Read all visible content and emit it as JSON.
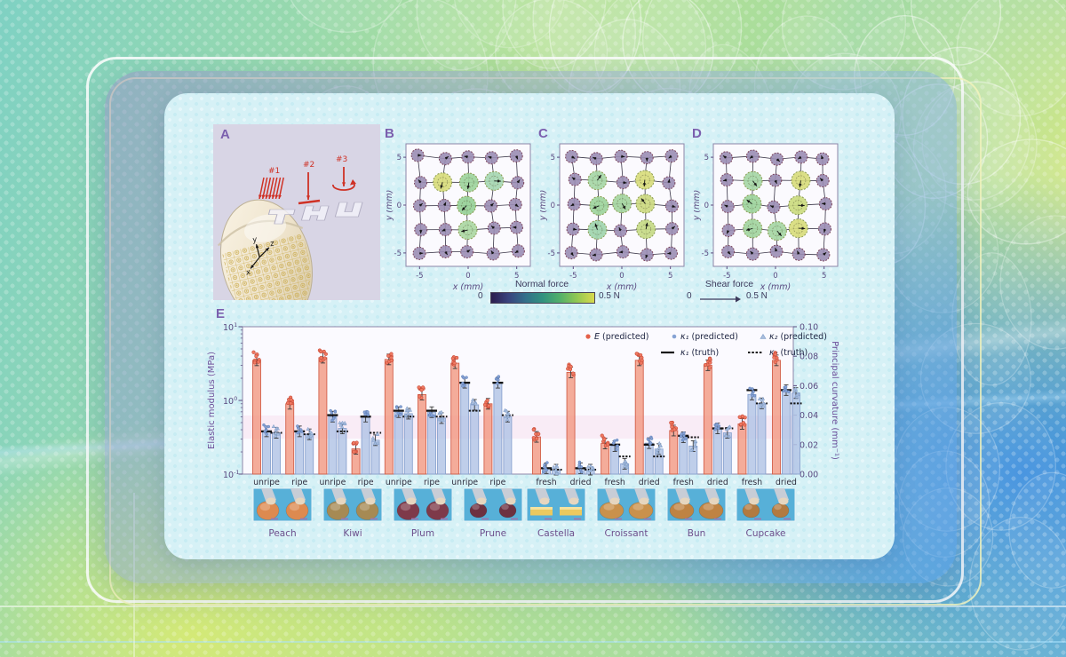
{
  "figure": {
    "panel_labels": {
      "a": "A",
      "b": "B",
      "c": "C",
      "d": "D",
      "e": "E"
    },
    "panel_a": {
      "force_labels": [
        "#1",
        "#2",
        "#3"
      ],
      "axis_labels": {
        "x": "x",
        "y": "y",
        "z": "z"
      }
    },
    "force_maps": {
      "x_axis_label": "x (mm)",
      "y_axis_label": "y (mm)",
      "x_ticks": [
        "-5",
        "0",
        "5"
      ],
      "y_ticks": [
        "5",
        "0",
        "-5"
      ],
      "node_positions_mm": [
        -5,
        -2.5,
        0,
        2.5,
        5
      ],
      "panels": [
        {
          "id": "B",
          "pattern_letter": "T",
          "active_nodes": [
            {
              "col": 1,
              "row": 1,
              "color": "#d8dc7c"
            },
            {
              "col": 2,
              "row": 1,
              "color": "#9dd49c"
            },
            {
              "col": 3,
              "row": 1,
              "color": "#a6d7b2"
            },
            {
              "col": 2,
              "row": 2,
              "color": "#96d097"
            },
            {
              "col": 2,
              "row": 3,
              "color": "#abd8a3"
            }
          ]
        },
        {
          "id": "C",
          "pattern_letter": "H",
          "active_nodes": [
            {
              "col": 1,
              "row": 1,
              "color": "#a6d7a6"
            },
            {
              "col": 3,
              "row": 1,
              "color": "#d8dc7c"
            },
            {
              "col": 1,
              "row": 2,
              "color": "#9dd49c"
            },
            {
              "col": 2,
              "row": 2,
              "color": "#a4d5a0"
            },
            {
              "col": 3,
              "row": 2,
              "color": "#ccd980"
            },
            {
              "col": 1,
              "row": 3,
              "color": "#9fd5ae"
            },
            {
              "col": 3,
              "row": 3,
              "color": "#c6da85"
            }
          ]
        },
        {
          "id": "D",
          "pattern_letter": "U",
          "active_nodes": [
            {
              "col": 1,
              "row": 1,
              "color": "#a6d7a6"
            },
            {
              "col": 3,
              "row": 1,
              "color": "#d8dc7c"
            },
            {
              "col": 1,
              "row": 2,
              "color": "#9dd49c"
            },
            {
              "col": 3,
              "row": 2,
              "color": "#cbdb7f"
            },
            {
              "col": 1,
              "row": 3,
              "color": "#a2d59f"
            },
            {
              "col": 2,
              "row": 3,
              "color": "#a6d6a4"
            },
            {
              "col": 3,
              "row": 3,
              "color": "#d8dc7c"
            }
          ]
        }
      ]
    },
    "normal_force_legend": {
      "title": "Normal force",
      "min_label": "0",
      "max_label": "0.5 N"
    },
    "shear_force_legend": {
      "title": "Shear force",
      "min_label": "0",
      "max_label": "0.5 N"
    },
    "chart_data": {
      "type": "bar",
      "left_axis": {
        "label": "Elastic modulus (MPa)",
        "scale": "log",
        "tick_exponents": [
          1,
          0,
          -1
        ],
        "range": [
          0.1,
          10
        ]
      },
      "right_axis": {
        "label": "Principal curvature (mm⁻¹)",
        "ticks": [
          "0.00",
          "0.02",
          "0.04",
          "0.06",
          "0.08",
          "0.10"
        ],
        "range": [
          0,
          0.1
        ]
      },
      "legend": [
        {
          "label": "E (predicted)",
          "marker": "red-dot"
        },
        {
          "label": "κ₁ (predicted)",
          "marker": "blue-dot"
        },
        {
          "label": "κ₂ (predicted)",
          "marker": "blue-triangle"
        },
        {
          "label": "κ₁ (truth)",
          "marker": "solid-line"
        },
        {
          "label": "κ₂ (truth)",
          "marker": "dashed-line"
        }
      ],
      "groups": [
        {
          "item": "Peach",
          "cond": "unripe",
          "E": 3.5,
          "k1": 0.029,
          "k1_truth": 0.029,
          "k2": 0.028,
          "k2_truth": 0.028
        },
        {
          "item": "Peach",
          "cond": "ripe",
          "E": 0.9,
          "k1": 0.029,
          "k1_truth": 0.029,
          "k2": 0.027,
          "k2_truth": 0.027
        },
        {
          "item": "Kiwi",
          "cond": "unripe",
          "E": 3.8,
          "k1": 0.039,
          "k1_truth": 0.04,
          "k2": 0.031,
          "k2_truth": 0.029
        },
        {
          "item": "Kiwi",
          "cond": "ripe",
          "E": 0.22,
          "k1": 0.039,
          "k1_truth": 0.039,
          "k2": 0.023,
          "k2_truth": 0.028
        },
        {
          "item": "Plum",
          "cond": "unripe",
          "E": 3.6,
          "k1": 0.042,
          "k1_truth": 0.043,
          "k2": 0.041,
          "k2_truth": 0.039
        },
        {
          "item": "Plum",
          "cond": "ripe",
          "E": 1.2,
          "k1": 0.042,
          "k1_truth": 0.043,
          "k2": 0.038,
          "k2_truth": 0.039
        },
        {
          "item": "Prune",
          "cond": "unripe",
          "E": 3.2,
          "k1": 0.062,
          "k1_truth": 0.062,
          "k2": 0.047,
          "k2_truth": 0.043
        },
        {
          "item": "Prune",
          "cond": "ripe",
          "E": 0.9,
          "k1": 0.062,
          "k1_truth": 0.062,
          "k2": 0.039,
          "k2_truth": 0.04
        },
        {
          "item": "Castella",
          "cond": "fresh",
          "E": 0.32,
          "k1": 0.004,
          "k1_truth": 0.004,
          "k2": 0.003,
          "k2_truth": 0.003
        },
        {
          "item": "Castella",
          "cond": "dried",
          "E": 2.4,
          "k1": 0.004,
          "k1_truth": 0.004,
          "k2": 0.003,
          "k2_truth": 0.003
        },
        {
          "item": "Croissant",
          "cond": "fresh",
          "E": 0.26,
          "k1": 0.019,
          "k1_truth": 0.02,
          "k2": 0.007,
          "k2_truth": 0.012
        },
        {
          "item": "Croissant",
          "cond": "dried",
          "E": 3.5,
          "k1": 0.021,
          "k1_truth": 0.02,
          "k2": 0.017,
          "k2_truth": 0.012
        },
        {
          "item": "Bun",
          "cond": "fresh",
          "E": 0.39,
          "k1": 0.025,
          "k1_truth": 0.026,
          "k2": 0.019,
          "k2_truth": 0.025
        },
        {
          "item": "Bun",
          "cond": "dried",
          "E": 3.0,
          "k1": 0.031,
          "k1_truth": 0.031,
          "k2": 0.028,
          "k2_truth": 0.031
        },
        {
          "item": "Cupcake",
          "cond": "fresh",
          "E": 0.48,
          "k1": 0.054,
          "k1_truth": 0.057,
          "k2": 0.048,
          "k2_truth": 0.048
        },
        {
          "item": "Cupcake",
          "cond": "dried",
          "E": 3.5,
          "k1": 0.057,
          "k1_truth": 0.057,
          "k2": 0.055,
          "k2_truth": 0.048
        }
      ],
      "items": [
        {
          "name": "Peach",
          "conditions": [
            "unripe",
            "ripe"
          ]
        },
        {
          "name": "Kiwi",
          "conditions": [
            "unripe",
            "ripe"
          ]
        },
        {
          "name": "Plum",
          "conditions": [
            "unripe",
            "ripe"
          ]
        },
        {
          "name": "Prune",
          "conditions": [
            "unripe",
            "ripe"
          ]
        },
        {
          "name": "Castella",
          "conditions": [
            "fresh",
            "dried"
          ]
        },
        {
          "name": "Croissant",
          "conditions": [
            "fresh",
            "dried"
          ]
        },
        {
          "name": "Bun",
          "conditions": [
            "fresh",
            "dried"
          ]
        },
        {
          "name": "Cupcake",
          "conditions": [
            "fresh",
            "dried"
          ]
        }
      ]
    },
    "photos": [
      {
        "label": "Peach",
        "object_color": "#dd8a50",
        "shape": "round"
      },
      {
        "label": "Kiwi",
        "object_color": "#a68a54",
        "shape": "round"
      },
      {
        "label": "Plum",
        "object_color": "#7e3a4a",
        "shape": "round"
      },
      {
        "label": "Prune",
        "object_color": "#6d3140",
        "shape": "round-small"
      },
      {
        "label": "Castella",
        "object_color": "#ecc95f",
        "shape": "rect"
      },
      {
        "label": "Croissant",
        "object_color": "#c9914c",
        "shape": "round-wide"
      },
      {
        "label": "Bun",
        "object_color": "#bf8343",
        "shape": "round-wide"
      },
      {
        "label": "Cupcake",
        "object_color": "#b27a40",
        "shape": "round-small"
      }
    ],
    "colors": {
      "e_bar": "#f29278",
      "e_bar_edge": "#d2604a",
      "k_bar": "#b4c5e6",
      "k_bar_edge": "#8aa3cf",
      "node_inactive": "#9a8db4",
      "panel_label": "#7b5fae",
      "axis_text": "#5b4a80"
    }
  }
}
